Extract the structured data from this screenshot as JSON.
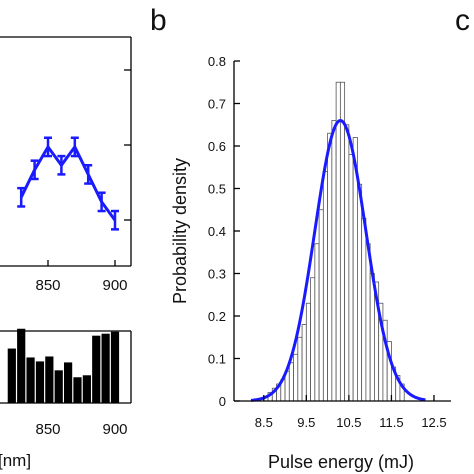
{
  "panel_labels": {
    "b": "b",
    "c": "c"
  },
  "left_top": {
    "tick_labels": [
      "850",
      "900"
    ]
  },
  "left_bottom": {
    "tick_labels": [
      "850",
      "900"
    ],
    "xlabel_fragment": "[nm]"
  },
  "chart_data": [
    {
      "type": "line",
      "panel": "a-top (partially visible)",
      "x": [
        830,
        840,
        850,
        860,
        870,
        880,
        890,
        900
      ],
      "y": [
        0.3,
        0.42,
        0.52,
        0.44,
        0.52,
        0.4,
        0.28,
        0.2
      ],
      "err": [
        0.04,
        0.04,
        0.04,
        0.04,
        0.04,
        0.04,
        0.04,
        0.04
      ],
      "xlim": [
        823,
        908
      ],
      "color": "#1a1aff",
      "grid": false
    },
    {
      "type": "bar",
      "panel": "a-bottom (partially visible)",
      "x": [
        823,
        830,
        837,
        844,
        851,
        858,
        865,
        872,
        879,
        886,
        893,
        900
      ],
      "values": [
        0.55,
        0.75,
        0.46,
        0.42,
        0.47,
        0.33,
        0.41,
        0.26,
        0.28,
        0.68,
        0.7,
        0.72
      ],
      "xlim": [
        823,
        908
      ],
      "bar_color": "#000000"
    },
    {
      "type": "bar",
      "panel": "b",
      "xlabel": "Pulse energy (mJ)",
      "ylabel": "Probability density",
      "xlim": [
        7.8,
        12.9
      ],
      "ylim": [
        0,
        0.8
      ],
      "xticks": [
        "8.5",
        "9.5",
        "10.5",
        "11.5",
        "12.5"
      ],
      "yticks": [
        "0",
        "0.1",
        "0.2",
        "0.3",
        "0.4",
        "0.5",
        "0.6",
        "0.7",
        "0.8"
      ],
      "bin_width": 0.1,
      "bins_start": 8.4,
      "values": [
        0.005,
        0.01,
        0.02,
        0.03,
        0.04,
        0.05,
        0.07,
        0.09,
        0.11,
        0.15,
        0.18,
        0.23,
        0.29,
        0.37,
        0.45,
        0.54,
        0.63,
        0.66,
        0.75,
        0.75,
        0.65,
        0.58,
        0.62,
        0.51,
        0.43,
        0.37,
        0.3,
        0.28,
        0.23,
        0.19,
        0.14,
        0.08,
        0.06,
        0.04
      ],
      "fit": {
        "type": "gaussian",
        "mean": 10.3,
        "sd": 0.6,
        "peak": 0.66,
        "color": "#1a1aff"
      },
      "bar_fill": "#ffffff",
      "bar_stroke": "#555555",
      "grid": false
    }
  ]
}
